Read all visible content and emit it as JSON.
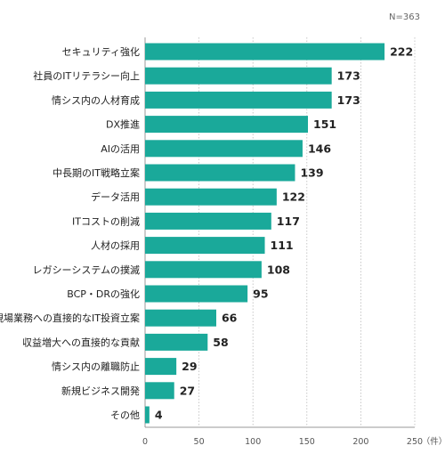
{
  "chart_data": {
    "type": "bar",
    "orientation": "horizontal",
    "note": "N=363",
    "unit": "（件）",
    "categories": [
      "セキュリティ強化",
      "社員のITリテラシー向上",
      "情シス内の人材育成",
      "DX推進",
      "AIの活用",
      "中長期のIT戦略立案",
      "データ活用",
      "ITコストの削減",
      "人材の採用",
      "レガシーシステムの撲滅",
      "BCP・DRの強化",
      "現場業務への直接的なIT投資立案",
      "収益増大への直接的な貢献",
      "情シス内の離職防止",
      "新規ビジネス開発",
      "その他"
    ],
    "values": [
      222,
      173,
      173,
      151,
      146,
      139,
      122,
      117,
      111,
      108,
      95,
      66,
      58,
      29,
      27,
      4
    ],
    "xlim": [
      0,
      250
    ],
    "xticks": [
      0,
      50,
      100,
      150,
      200,
      250
    ],
    "grid": true,
    "colors": {
      "bar": "#1aa99a",
      "grid": "#bbbbbb",
      "axis": "#999999"
    }
  }
}
